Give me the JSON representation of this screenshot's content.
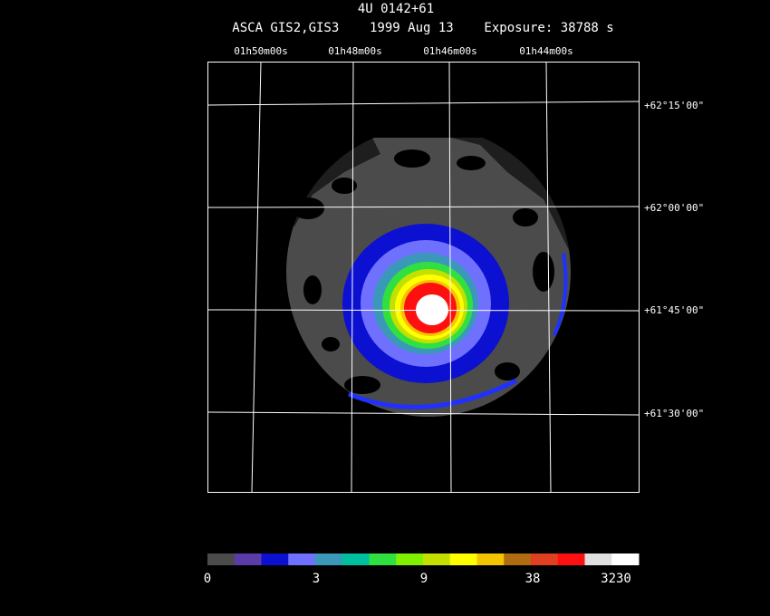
{
  "title": "4U 0142+61",
  "subtitle": "ASCA GIS2,GIS3    1999 Aug 13    Exposure: 38788 s",
  "ra_labels": [
    "01h50m00s",
    "01h48m00s",
    "01h46m00s",
    "01h44m00s"
  ],
  "dec_labels": [
    "+62°15'00\"",
    "+62°00'00\"",
    "+61°45'00\"",
    "+61°30'00\""
  ],
  "colorbar": {
    "colors": [
      "#4b4b4b",
      "#5a3ca8",
      "#0c10d0",
      "#7070ff",
      "#3a98b8",
      "#00c0a0",
      "#30e040",
      "#80f000",
      "#c4e000",
      "#ffff00",
      "#f4c400",
      "#b06c10",
      "#e04020",
      "#ff1010",
      "#e0e0e0",
      "#ffffff"
    ],
    "labels": [
      "0",
      "3",
      "9",
      "38",
      "3230"
    ]
  }
}
